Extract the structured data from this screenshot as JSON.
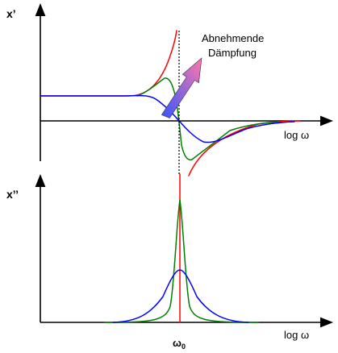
{
  "chart_data": [
    {
      "type": "line",
      "ylabel": "x’",
      "xlabel": "log ω",
      "x_scale": "log",
      "annotation": "Abnehmende Dämpfung",
      "annotation_colors": [
        "#3355ff",
        "#ff77aa"
      ],
      "reference_line": {
        "x_label": "ω",
        "style": "dotted",
        "color": "#000000"
      },
      "series": [
        {
          "color": "#ff0000",
          "damping": "none"
        },
        {
          "color": "#008000",
          "damping": "low"
        },
        {
          "color": "#0000ff",
          "damping": "high"
        }
      ]
    },
    {
      "type": "line",
      "ylabel": "x’’",
      "xlabel": "log ω",
      "x_scale": "log",
      "x_marker": {
        "label": "ω",
        "subscript": "0",
        "color": "#ff0000"
      },
      "series": [
        {
          "color": "#ff0000",
          "damping": "none",
          "shape": "delta"
        },
        {
          "color": "#008000",
          "damping": "low"
        },
        {
          "color": "#0000ff",
          "damping": "high"
        }
      ]
    }
  ]
}
